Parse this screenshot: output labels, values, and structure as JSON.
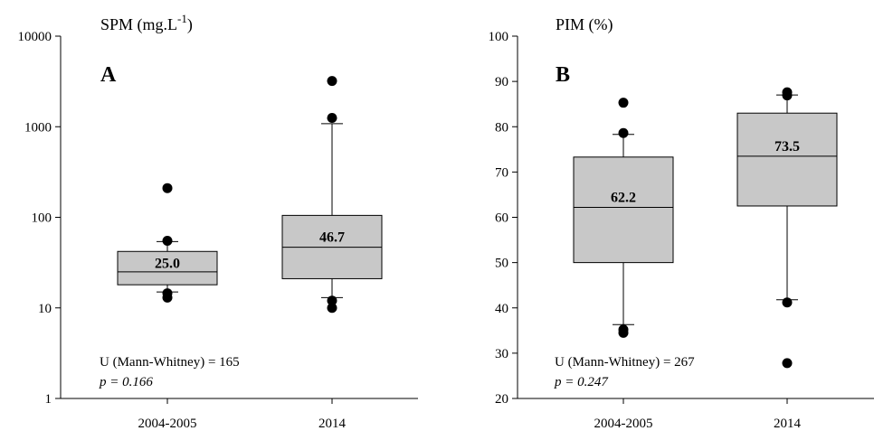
{
  "chart_data": [
    {
      "type": "box",
      "panel": "A",
      "ylabel": "SPM (mg.L",
      "ylabel_sup": "-1",
      "ylabel_close": ")",
      "yscale": "log",
      "ylim": [
        1,
        10000
      ],
      "yticks": [
        1,
        10,
        100,
        1000,
        10000
      ],
      "ytick_labels": [
        "1",
        "10",
        "100",
        "1000",
        "10000"
      ],
      "categories": [
        "2004-2005",
        "2014"
      ],
      "boxes": [
        {
          "q1": 18,
          "median": 25.0,
          "q3": 42,
          "whisker_low": 15,
          "whisker_high": 54,
          "outliers": [
            13,
            14.5,
            55,
            210
          ],
          "median_label": "25.0"
        },
        {
          "q1": 21,
          "median": 46.7,
          "q3": 105,
          "whisker_low": 13,
          "whisker_high": 1080,
          "outliers": [
            10,
            12,
            1250,
            3200
          ],
          "median_label": "46.7"
        }
      ],
      "stat_line1": "U (Mann-Whitney) = 165",
      "stat_line2": "p = 0.166",
      "box_color": "#c8c8c8"
    },
    {
      "type": "box",
      "panel": "B",
      "ylabel": "PIM (%)",
      "yscale": "linear",
      "ylim": [
        20,
        100
      ],
      "yticks": [
        20,
        30,
        40,
        50,
        60,
        70,
        80,
        90,
        100
      ],
      "ytick_labels": [
        "20",
        "30",
        "40",
        "50",
        "60",
        "70",
        "80",
        "90",
        "100"
      ],
      "categories": [
        "2004-2005",
        "2014"
      ],
      "boxes": [
        {
          "q1": 50,
          "median": 62.2,
          "q3": 73.3,
          "whisker_low": 36.3,
          "whisker_high": 78.3,
          "outliers": [
            34.5,
            35.2,
            78.6,
            85.3
          ],
          "median_label": "62.2"
        },
        {
          "q1": 62.5,
          "median": 73.5,
          "q3": 83,
          "whisker_low": 41.8,
          "whisker_high": 87,
          "outliers": [
            27.8,
            41.2,
            86.9,
            87.6
          ],
          "median_label": "73.5"
        }
      ],
      "stat_line1": "U (Mann-Whitney) = 267",
      "stat_line2": "p = 0.247",
      "box_color": "#c8c8c8"
    }
  ]
}
